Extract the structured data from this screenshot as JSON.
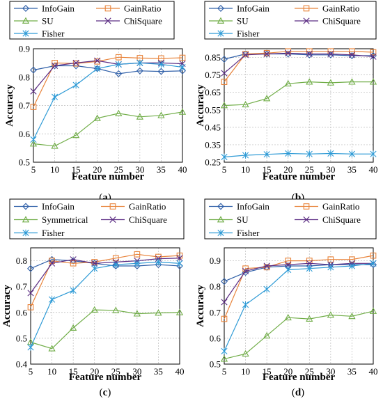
{
  "chart_data": [
    {
      "type": "line",
      "panel_label": "(a)",
      "xlabel": "Feature number",
      "ylabel": "Accuracy",
      "x": [
        5,
        10,
        15,
        20,
        25,
        30,
        35,
        40
      ],
      "ylim": [
        0.5,
        0.9
      ],
      "yticks": [
        "0.5",
        "0.6",
        "0.7",
        "0.8",
        "0.9"
      ],
      "series": [
        {
          "name": "InfoGain",
          "color": "#2f5fa8",
          "marker": "diamond",
          "values": [
            0.825,
            0.84,
            0.84,
            0.83,
            0.812,
            0.822,
            0.82,
            0.822
          ]
        },
        {
          "name": "GainRatio",
          "color": "#e8833a",
          "marker": "square",
          "values": [
            0.695,
            0.85,
            0.848,
            0.855,
            0.87,
            0.867,
            0.866,
            0.868
          ]
        },
        {
          "name": "SU",
          "color": "#70ad47",
          "marker": "triangle",
          "values": [
            0.565,
            0.557,
            0.595,
            0.655,
            0.672,
            0.66,
            0.665,
            0.677
          ]
        },
        {
          "name": "ChiSquare",
          "color": "#5b2c83",
          "marker": "x",
          "values": [
            0.75,
            0.84,
            0.85,
            0.858,
            0.845,
            0.85,
            0.85,
            0.847
          ]
        },
        {
          "name": "Fisher",
          "color": "#2f9bd6",
          "marker": "star",
          "values": [
            0.58,
            0.73,
            0.772,
            0.83,
            0.845,
            0.85,
            0.845,
            0.835
          ]
        }
      ]
    },
    {
      "type": "line",
      "panel_label": "(b)",
      "xlabel": "Feature number",
      "ylabel": "Accuracy",
      "x": [
        5,
        10,
        15,
        20,
        25,
        30,
        35,
        40
      ],
      "ylim": [
        0.25,
        0.9
      ],
      "yticks": [
        "0.25",
        "0.35",
        "0.45",
        "0.55",
        "0.65",
        "0.75",
        "0.85"
      ],
      "series": [
        {
          "name": "InfoGain",
          "color": "#2f5fa8",
          "marker": "diamond",
          "values": [
            0.84,
            0.87,
            0.87,
            0.87,
            0.865,
            0.865,
            0.86,
            0.86
          ]
        },
        {
          "name": "GainRatio",
          "color": "#e8833a",
          "marker": "square",
          "values": [
            0.71,
            0.87,
            0.875,
            0.885,
            0.885,
            0.885,
            0.885,
            0.88
          ]
        },
        {
          "name": "SU",
          "color": "#70ad47",
          "marker": "triangle",
          "values": [
            0.575,
            0.58,
            0.615,
            0.7,
            0.71,
            0.705,
            0.71,
            0.71
          ]
        },
        {
          "name": "ChiSquare",
          "color": "#5b2c83",
          "marker": "x",
          "values": [
            0.76,
            0.865,
            0.87,
            0.875,
            0.87,
            0.87,
            0.865,
            0.855
          ]
        },
        {
          "name": "Fisher",
          "color": "#2f9bd6",
          "marker": "star",
          "values": [
            0.28,
            0.29,
            0.295,
            0.3,
            0.297,
            0.3,
            0.297,
            0.297
          ]
        }
      ]
    },
    {
      "type": "line",
      "panel_label": "(c)",
      "xlabel": "Feature number",
      "ylabel": "Accuracy",
      "x": [
        5,
        10,
        15,
        20,
        25,
        30,
        35,
        40
      ],
      "ylim": [
        0.4,
        0.85
      ],
      "yticks": [
        "0.4",
        "0.5",
        "0.6",
        "0.7",
        "0.8"
      ],
      "series": [
        {
          "name": "InfoGain",
          "color": "#2f5fa8",
          "marker": "diamond",
          "values": [
            0.77,
            0.805,
            0.8,
            0.79,
            0.78,
            0.78,
            0.785,
            0.78
          ]
        },
        {
          "name": "GainRatio",
          "color": "#e8833a",
          "marker": "square",
          "values": [
            0.62,
            0.8,
            0.79,
            0.795,
            0.81,
            0.825,
            0.815,
            0.82
          ]
        },
        {
          "name": "Symmetrical",
          "color": "#70ad47",
          "marker": "triangle",
          "values": [
            0.485,
            0.46,
            0.54,
            0.61,
            0.608,
            0.595,
            0.598,
            0.6
          ]
        },
        {
          "name": "ChiSquare",
          "color": "#5b2c83",
          "marker": "x",
          "values": [
            0.675,
            0.79,
            0.805,
            0.79,
            0.795,
            0.8,
            0.808,
            0.81
          ]
        },
        {
          "name": "Fisher",
          "color": "#2f9bd6",
          "marker": "star",
          "values": [
            0.465,
            0.65,
            0.685,
            0.77,
            0.785,
            0.79,
            0.795,
            0.79
          ]
        }
      ]
    },
    {
      "type": "line",
      "panel_label": "(d)",
      "xlabel": "Feature number",
      "ylabel": "Accuracy",
      "x": [
        5,
        10,
        15,
        20,
        25,
        30,
        35,
        40
      ],
      "ylim": [
        0.5,
        0.95
      ],
      "yticks": [
        "0.5",
        "0.6",
        "0.7",
        "0.8",
        "0.9"
      ],
      "series": [
        {
          "name": "InfoGain",
          "color": "#2f5fa8",
          "marker": "diamond",
          "values": [
            0.82,
            0.855,
            0.875,
            0.88,
            0.88,
            0.885,
            0.885,
            0.885
          ]
        },
        {
          "name": "GainRatio",
          "color": "#e8833a",
          "marker": "square",
          "values": [
            0.675,
            0.87,
            0.875,
            0.9,
            0.9,
            0.905,
            0.905,
            0.92
          ]
        },
        {
          "name": "SU",
          "color": "#70ad47",
          "marker": "triangle",
          "values": [
            0.52,
            0.54,
            0.61,
            0.68,
            0.675,
            0.69,
            0.685,
            0.705
          ]
        },
        {
          "name": "ChiSquare",
          "color": "#5b2c83",
          "marker": "x",
          "values": [
            0.74,
            0.86,
            0.88,
            0.885,
            0.89,
            0.885,
            0.89,
            0.89
          ]
        },
        {
          "name": "Fisher",
          "color": "#2f9bd6",
          "marker": "star",
          "values": [
            0.55,
            0.73,
            0.79,
            0.865,
            0.87,
            0.875,
            0.88,
            0.89
          ]
        }
      ]
    }
  ]
}
